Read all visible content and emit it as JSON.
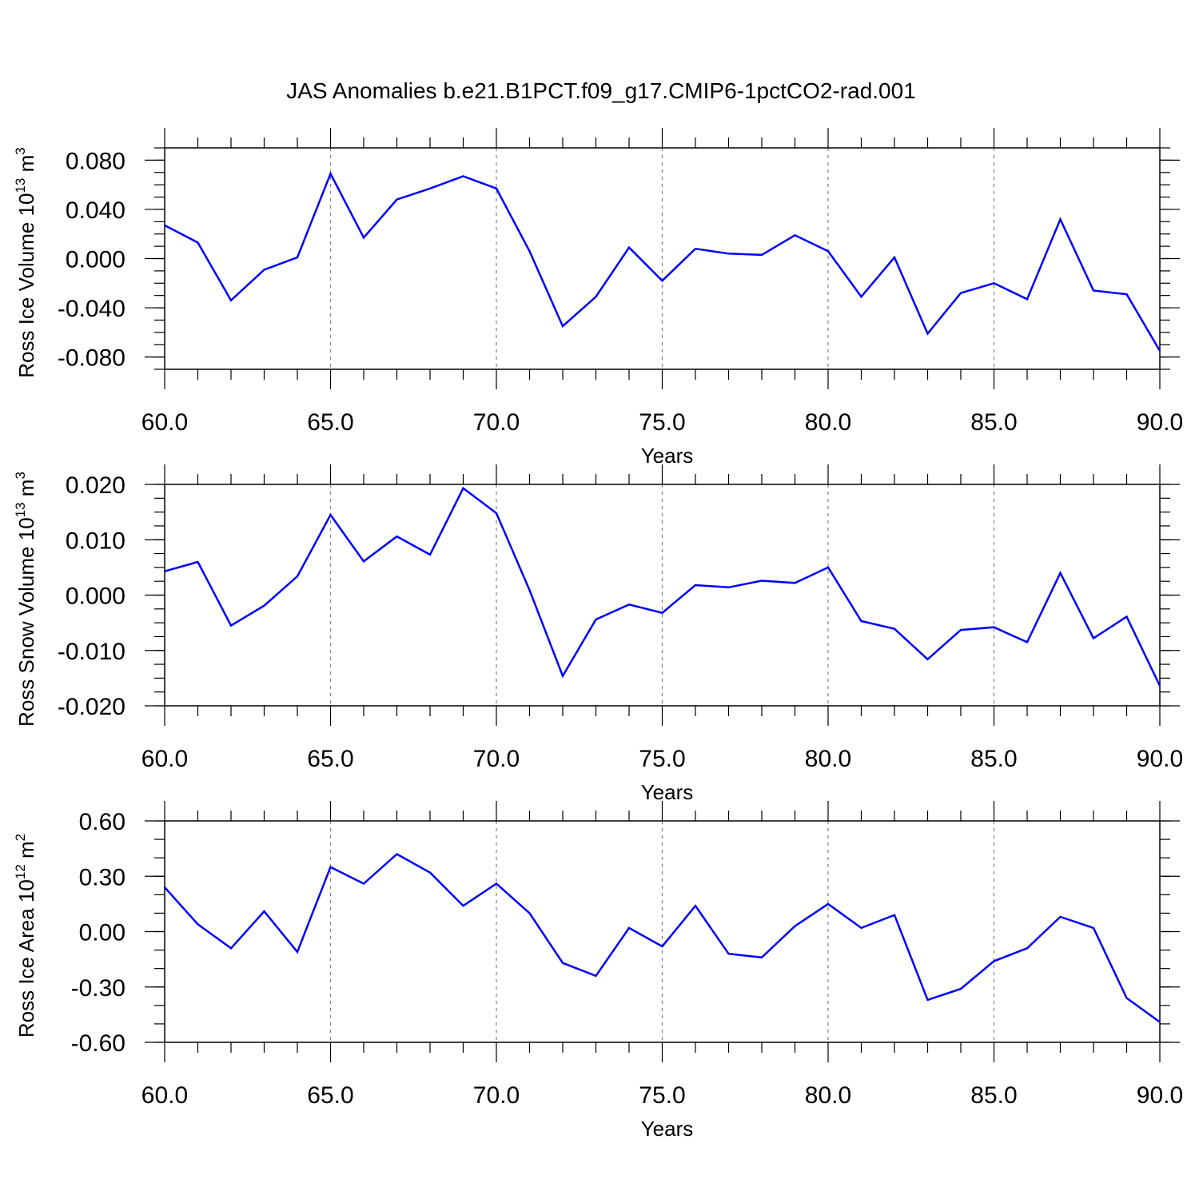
{
  "title": "JAS Anomalies b.e21.B1PCT.f09_g17.CMIP6-1pctCO2-rad.001",
  "colors": {
    "line": "#0000ff",
    "axis": "#000000",
    "grid": "#808080"
  },
  "chart_data": [
    {
      "type": "line",
      "ylabel_main": "Ross Ice Volume 10",
      "ylabel_sup": "13",
      "ylabel_unit": " m",
      "ylabel_unit_sup": "3",
      "xlabel": "Years",
      "xlim": [
        60,
        90
      ],
      "ylim": [
        -0.09,
        0.09
      ],
      "x_ticks": [
        "60.0",
        "65.0",
        "70.0",
        "75.0",
        "80.0",
        "85.0",
        "90.0"
      ],
      "y_ticks": [
        {
          "value": 0.08,
          "label": "0.080"
        },
        {
          "value": 0.04,
          "label": "0.040"
        },
        {
          "value": 0.0,
          "label": "0.000"
        },
        {
          "value": -0.04,
          "label": "-0.040"
        },
        {
          "value": -0.08,
          "label": "-0.080"
        }
      ],
      "y_minor_step": 0.01,
      "grid": "vertical dashed at major x ticks",
      "x": [
        60,
        61,
        62,
        63,
        64,
        65,
        66,
        67,
        68,
        69,
        70,
        71,
        72,
        73,
        74,
        75,
        76,
        77,
        78,
        79,
        80,
        81,
        82,
        83,
        84,
        85,
        86,
        87,
        88,
        89,
        90
      ],
      "values": [
        0.027,
        0.013,
        -0.034,
        -0.009,
        0.001,
        0.069,
        0.017,
        0.048,
        0.057,
        0.067,
        0.057,
        0.006,
        -0.055,
        -0.031,
        0.009,
        -0.018,
        0.008,
        0.004,
        0.003,
        0.019,
        0.006,
        -0.031,
        0.001,
        -0.061,
        -0.028,
        -0.02,
        -0.033,
        0.032,
        -0.026,
        -0.029,
        -0.075
      ]
    },
    {
      "type": "line",
      "ylabel_main": "Ross Snow Volume 10",
      "ylabel_sup": "13",
      "ylabel_unit": " m",
      "ylabel_unit_sup": "3",
      "xlabel": "Years",
      "xlim": [
        60,
        90
      ],
      "ylim": [
        -0.02,
        0.02
      ],
      "x_ticks": [
        "60.0",
        "65.0",
        "70.0",
        "75.0",
        "80.0",
        "85.0",
        "90.0"
      ],
      "y_ticks": [
        {
          "value": 0.02,
          "label": "0.020"
        },
        {
          "value": 0.01,
          "label": "0.010"
        },
        {
          "value": 0.0,
          "label": "0.000"
        },
        {
          "value": -0.01,
          "label": "-0.010"
        },
        {
          "value": -0.02,
          "label": "-0.020"
        }
      ],
      "y_minor_step": 0.0025,
      "grid": "vertical dashed at major x ticks",
      "x": [
        60,
        61,
        62,
        63,
        64,
        65,
        66,
        67,
        68,
        69,
        70,
        71,
        72,
        73,
        74,
        75,
        76,
        77,
        78,
        79,
        80,
        81,
        82,
        83,
        84,
        85,
        86,
        87,
        88,
        89,
        90
      ],
      "values": [
        0.0043,
        0.006,
        -0.0055,
        -0.0019,
        0.0034,
        0.0145,
        0.0061,
        0.0106,
        0.0073,
        0.0193,
        0.0148,
        0.0009,
        -0.0146,
        -0.0044,
        -0.0017,
        -0.0032,
        0.0018,
        0.0014,
        0.0026,
        0.0022,
        0.005,
        -0.0047,
        -0.0061,
        -0.0116,
        -0.0063,
        -0.0058,
        -0.0085,
        0.004,
        -0.0078,
        -0.0039,
        -0.0164
      ]
    },
    {
      "type": "line",
      "ylabel_main": "Ross Ice Area 10",
      "ylabel_sup": "12",
      "ylabel_unit": " m",
      "ylabel_unit_sup": "2",
      "xlabel": "Years",
      "xlim": [
        60,
        90
      ],
      "ylim": [
        -0.6,
        0.6
      ],
      "x_ticks": [
        "60.0",
        "65.0",
        "70.0",
        "75.0",
        "80.0",
        "85.0",
        "90.0"
      ],
      "y_ticks": [
        {
          "value": 0.6,
          "label": "0.60"
        },
        {
          "value": 0.3,
          "label": "0.30"
        },
        {
          "value": 0.0,
          "label": "0.00"
        },
        {
          "value": -0.3,
          "label": "-0.30"
        },
        {
          "value": -0.6,
          "label": "-0.60"
        }
      ],
      "y_minor_step": 0.1,
      "grid": "vertical dashed at major x ticks",
      "x": [
        60,
        61,
        62,
        63,
        64,
        65,
        66,
        67,
        68,
        69,
        70,
        71,
        72,
        73,
        74,
        75,
        76,
        77,
        78,
        79,
        80,
        81,
        82,
        83,
        84,
        85,
        86,
        87,
        88,
        89,
        90
      ],
      "values": [
        0.24,
        0.04,
        -0.09,
        0.11,
        -0.11,
        0.35,
        0.26,
        0.42,
        0.32,
        0.14,
        0.26,
        0.1,
        -0.17,
        -0.24,
        0.02,
        -0.08,
        0.14,
        -0.12,
        -0.14,
        0.03,
        0.15,
        0.02,
        0.09,
        -0.37,
        -0.31,
        -0.16,
        -0.09,
        0.08,
        0.02,
        -0.36,
        -0.49
      ]
    }
  ]
}
